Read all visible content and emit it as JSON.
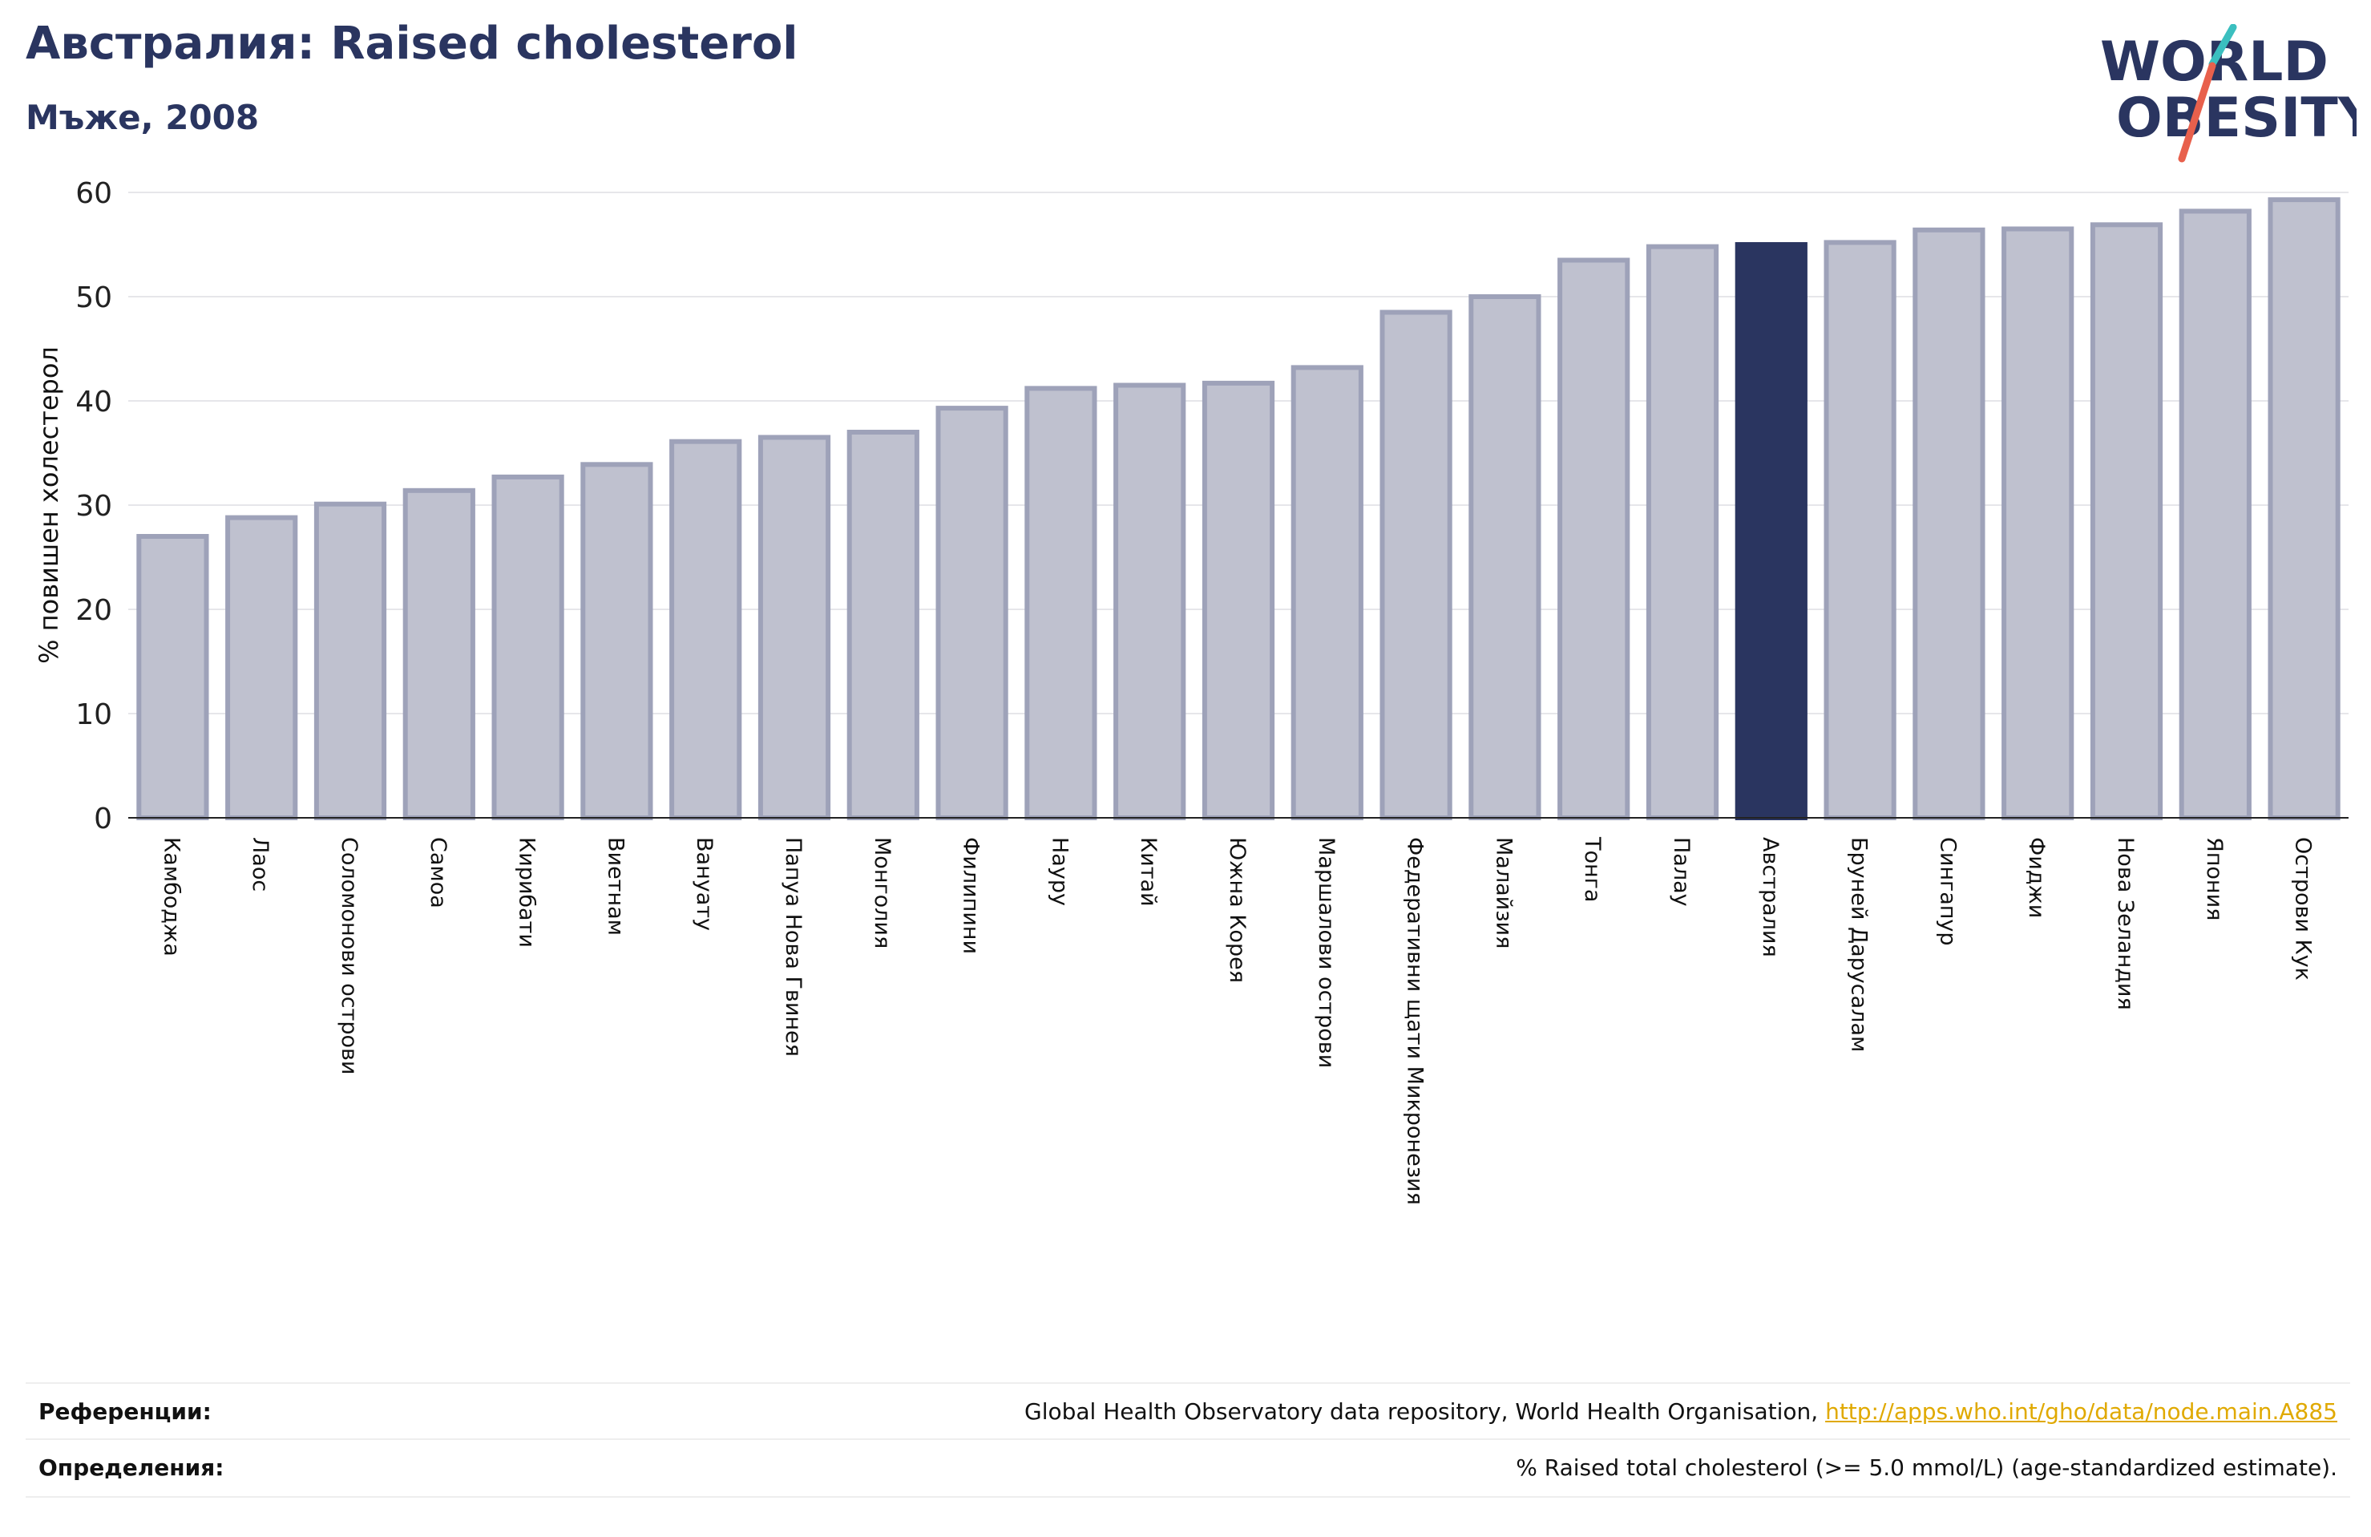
{
  "header": {
    "title": "Австралия: Raised cholesterol",
    "subtitle": "Мъже, 2008"
  },
  "logo": {
    "line1": "WORLD",
    "line2": "OBESITY",
    "colors": {
      "text": "#2a3560",
      "slash_teal": "#3bbfbf",
      "slash_red": "#e8604c"
    }
  },
  "chart_data": {
    "type": "bar",
    "ylabel": "% повишен холестерол",
    "ylim": [
      0,
      60
    ],
    "yticks": [
      0,
      10,
      20,
      30,
      40,
      50,
      60
    ],
    "grid": true,
    "highlight": "Австралия",
    "colors": {
      "bar": "#bfc1cf",
      "bar_edge": "#9ea2b9",
      "highlight": "#2a3560"
    },
    "categories": [
      "Камбоджа",
      "Лаос",
      "Соломонови острови",
      "Самоа",
      "Кирибати",
      "Виетнам",
      "Вануату",
      "Папуа Нова Гвинея",
      "Монголия",
      "Филипини",
      "Науру",
      "Китай",
      "Южна Корея",
      "Маршалови острови",
      "Федеративни щати Микронезия",
      "Малайзия",
      "Тонга",
      "Палау",
      "Австралия",
      "Бруней Дарусалам",
      "Сингапур",
      "Фиджи",
      "Нова Зеландия",
      "Япония",
      "Острови Кук"
    ],
    "values": [
      27.0,
      28.8,
      30.1,
      31.4,
      32.7,
      33.9,
      36.1,
      36.5,
      37.0,
      39.3,
      41.2,
      41.5,
      41.7,
      43.2,
      48.5,
      50.0,
      53.5,
      54.8,
      55.0,
      55.2,
      56.4,
      56.5,
      56.9,
      58.2,
      59.3
    ]
  },
  "footer": {
    "references_label": "Референции:",
    "references_text": "Global Health Observatory data repository, World Health Organisation, ",
    "references_link": "http://apps.who.int/gho/data/node.main.A885",
    "definitions_label": "Определения:",
    "definitions_text": "% Raised total cholesterol (>= 5.0 mmol/L) (age-standardized estimate)."
  }
}
